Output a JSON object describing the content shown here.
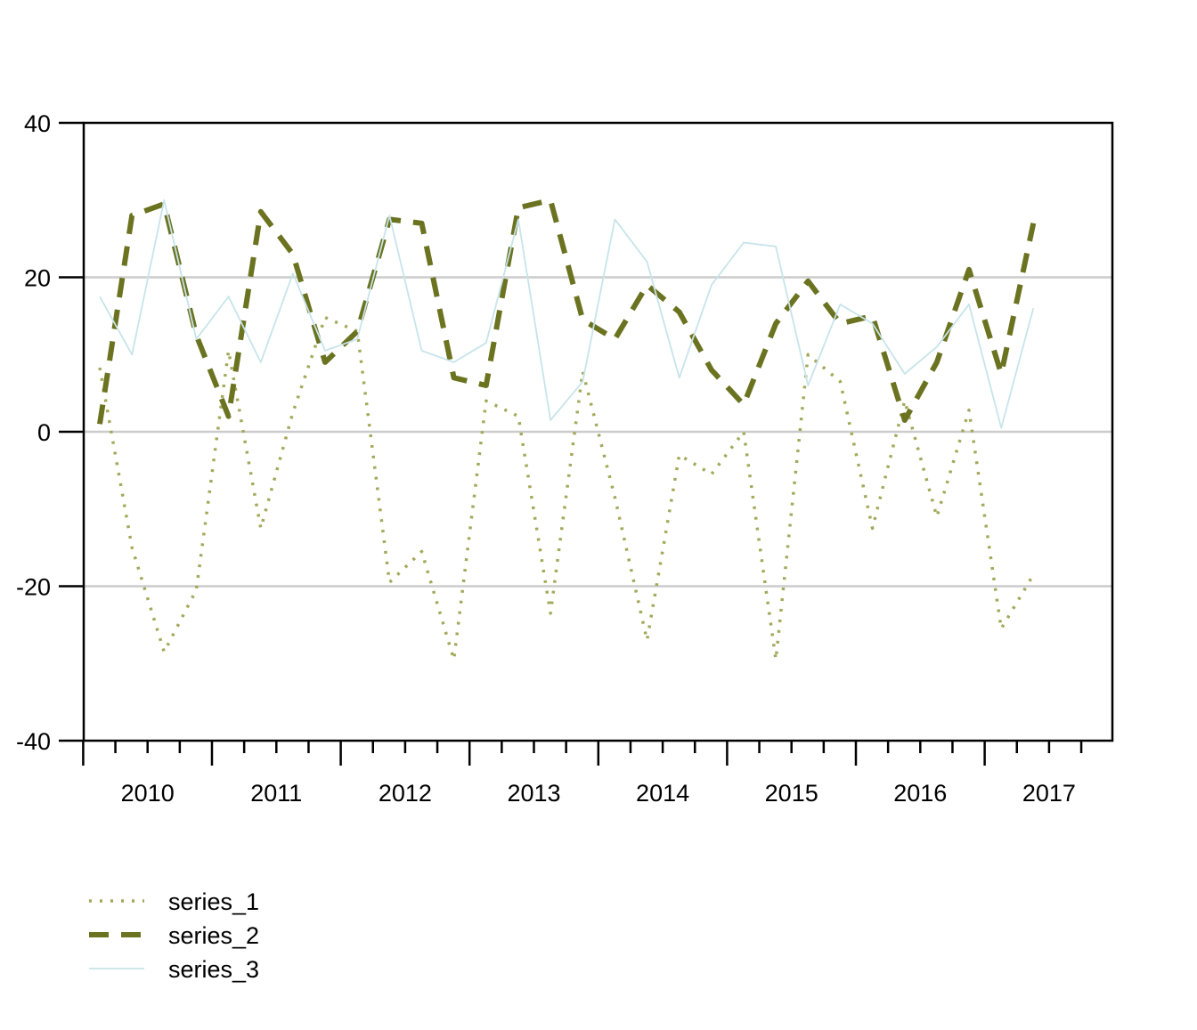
{
  "chart_data": {
    "type": "line",
    "title": "",
    "xlabel": "",
    "ylabel": "",
    "ylim": [
      -40,
      40
    ],
    "x_tick_labels": [
      "2010",
      "2011",
      "2012",
      "2013",
      "2014",
      "2015",
      "2016",
      "2017"
    ],
    "y_tick_labels": [
      "-40",
      "-20",
      "0",
      "20",
      "40"
    ],
    "y_ticks": [
      -40,
      -20,
      0,
      20,
      40
    ],
    "grid_y": [
      -20,
      0,
      20
    ],
    "grid": "horizontal",
    "legend_position": "bottom-left",
    "x_start": "2009-10",
    "x_frequency": "quarterly",
    "x": [
      "2009-Q4",
      "2010-Q1",
      "2010-Q2",
      "2010-Q3",
      "2010-Q4",
      "2011-Q1",
      "2011-Q2",
      "2011-Q3",
      "2011-Q4",
      "2012-Q1",
      "2012-Q2",
      "2012-Q3",
      "2012-Q4",
      "2013-Q1",
      "2013-Q2",
      "2013-Q3",
      "2013-Q4",
      "2014-Q1",
      "2014-Q2",
      "2014-Q3",
      "2014-Q4",
      "2015-Q1",
      "2015-Q2",
      "2015-Q3",
      "2015-Q4",
      "2016-Q1",
      "2016-Q2",
      "2016-Q3",
      "2016-Q4",
      "2017-Q1"
    ],
    "series": [
      {
        "name": "series_1",
        "color": "#a3a95a",
        "style": "dotted",
        "values": [
          8.3,
          -15.0,
          -28.5,
          -20.5,
          10.5,
          -12.5,
          2.5,
          14.8,
          13.0,
          -19.5,
          -15.5,
          -29.5,
          4.0,
          2.0,
          -23.5,
          7.8,
          -8.5,
          -27.0,
          -3.0,
          -5.5,
          0.0,
          -29.5,
          10.0,
          6.5,
          -12.5,
          4.0,
          -11.0,
          2.8,
          -25.5,
          -18.5
        ]
      },
      {
        "name": "series_2",
        "color": "#6b7320",
        "style": "dashed",
        "values": [
          1.0,
          28.0,
          29.5,
          12.5,
          2.0,
          28.5,
          23.0,
          9.0,
          13.0,
          27.5,
          27.0,
          7.0,
          6.0,
          29.0,
          30.0,
          14.5,
          12.0,
          19.0,
          15.5,
          8.0,
          3.5,
          14.0,
          19.5,
          14.0,
          15.0,
          1.5,
          9.0,
          21.0,
          7.5,
          27.0
        ]
      },
      {
        "name": "series_3",
        "color": "#c7e4ea",
        "style": "solid",
        "values": [
          17.5,
          10.0,
          30.0,
          12.0,
          17.5,
          9.0,
          20.5,
          10.5,
          12.0,
          28.0,
          10.5,
          9.0,
          11.5,
          27.5,
          1.5,
          6.5,
          27.5,
          22.0,
          7.0,
          19.0,
          24.5,
          24.0,
          6.0,
          16.5,
          14.0,
          7.5,
          11.0,
          16.5,
          0.5,
          16.0
        ]
      }
    ]
  }
}
